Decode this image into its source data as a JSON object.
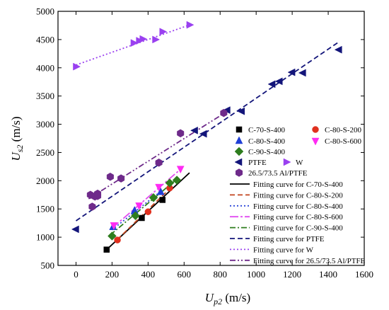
{
  "chart_data": {
    "type": "scatter",
    "xlabel": {
      "main": "U",
      "sub": "p2",
      "unit": " (m/s)"
    },
    "ylabel": {
      "main": "U",
      "sub": "s2",
      "unit": " (m/s)"
    },
    "xlim": [
      -100,
      1600
    ],
    "ylim": [
      500,
      5000
    ],
    "x_ticks": [
      "0",
      "200",
      "400",
      "600",
      "800",
      "1000",
      "1200",
      "1400",
      "1600"
    ],
    "y_ticks": [
      "500",
      "1000",
      "1500",
      "2000",
      "2500",
      "3000",
      "3500",
      "4000",
      "4500",
      "5000"
    ],
    "x_tick_values": [
      0,
      200,
      400,
      600,
      800,
      1000,
      1200,
      1400,
      1600
    ],
    "y_tick_values": [
      500,
      1000,
      1500,
      2000,
      2500,
      3000,
      3500,
      4000,
      4500,
      5000
    ],
    "legend_position": "bottom-right",
    "series": [
      {
        "name": "C-70-S-400",
        "marker": "square",
        "color": "#000000",
        "points": [
          [
            170,
            780
          ],
          [
            365,
            1340
          ],
          [
            480,
            1660
          ]
        ]
      },
      {
        "name": "C-80-S-200",
        "marker": "circle",
        "color": "#e0301e",
        "points": [
          [
            230,
            950
          ],
          [
            400,
            1450
          ],
          [
            520,
            1870
          ]
        ]
      },
      {
        "name": "C-80-S-400",
        "marker": "triangle-up",
        "color": "#1f3fd6",
        "points": [
          [
            205,
            1180
          ],
          [
            325,
            1470
          ],
          [
            470,
            1800
          ]
        ]
      },
      {
        "name": "C-80-S-600",
        "marker": "triangle-down",
        "color": "#ff2bf3",
        "points": [
          [
            210,
            1210
          ],
          [
            350,
            1560
          ],
          [
            460,
            1890
          ],
          [
            580,
            2210
          ]
        ]
      },
      {
        "name": "C-90-S-400",
        "marker": "diamond",
        "color": "#2e7d1e",
        "points": [
          [
            200,
            1020
          ],
          [
            330,
            1380
          ],
          [
            430,
            1700
          ],
          [
            520,
            1960
          ],
          [
            560,
            2010
          ]
        ]
      },
      {
        "name": "PTFE",
        "marker": "triangle-left",
        "color": "#13157a",
        "points": [
          [
            0,
            1140
          ],
          [
            660,
            2890
          ],
          [
            710,
            2830
          ],
          [
            840,
            3250
          ],
          [
            920,
            3230
          ],
          [
            1090,
            3710
          ],
          [
            1130,
            3760
          ],
          [
            1200,
            3920
          ],
          [
            1260,
            3910
          ],
          [
            1460,
            4320
          ]
        ]
      },
      {
        "name": "W",
        "marker": "triangle-right",
        "color": "#9a40f0",
        "points": [
          [
            0,
            4020
          ],
          [
            320,
            4440
          ],
          [
            350,
            4480
          ],
          [
            370,
            4510
          ],
          [
            440,
            4500
          ],
          [
            480,
            4640
          ],
          [
            630,
            4760
          ]
        ]
      },
      {
        "name": "26.5/73.5 Al/PTFE",
        "marker": "hexagon",
        "color": "#6e2a8a",
        "points": [
          [
            80,
            1750
          ],
          [
            90,
            1540
          ],
          [
            105,
            1720
          ],
          [
            120,
            1730
          ],
          [
            120,
            1770
          ],
          [
            190,
            2070
          ],
          [
            250,
            2040
          ],
          [
            460,
            2320
          ],
          [
            580,
            2840
          ],
          [
            820,
            3200
          ]
        ]
      }
    ],
    "fits": [
      {
        "name": "Fitting curve for C-70-S-400",
        "style": "solid",
        "color": "#000000",
        "x": [
          170,
          630
        ],
        "y": [
          780,
          2140
        ]
      },
      {
        "name": "Fitting curve for C-80-S-200",
        "style": "dash",
        "color": "#c2441e",
        "x": [
          230,
          530
        ],
        "y": [
          960,
          1890
        ]
      },
      {
        "name": "Fitting curve for C-80-S-400",
        "style": "dot",
        "color": "#2b46d8",
        "x": [
          200,
          470
        ],
        "y": [
          1130,
          1810
        ]
      },
      {
        "name": "Fitting curve for C-80-S-600",
        "style": "dashdot-long",
        "color": "#e14cf0",
        "x": [
          200,
          590
        ],
        "y": [
          1160,
          2230
        ]
      },
      {
        "name": "Fitting curve for C-90-S-400",
        "style": "dashdot",
        "color": "#2e7d1e",
        "x": [
          190,
          560
        ],
        "y": [
          1040,
          2030
        ]
      },
      {
        "name": "Fitting curve for PTFE",
        "style": "dash",
        "color": "#13157a",
        "x": [
          0,
          1460
        ],
        "y": [
          1290,
          4460
        ]
      },
      {
        "name": "Fitting curve for W",
        "style": "dot",
        "color": "#9a40f0",
        "x": [
          0,
          640
        ],
        "y": [
          4050,
          4770
        ]
      },
      {
        "name": "Fitting curve for 26.5/73.5 Al/PTFE",
        "style": "dashdotdot",
        "color": "#6e2a8a",
        "x": [
          70,
          840
        ],
        "y": [
          1680,
          3230
        ]
      }
    ]
  }
}
